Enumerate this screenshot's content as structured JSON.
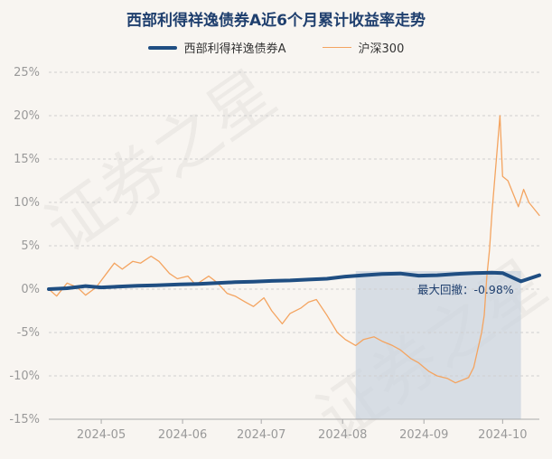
{
  "chart_data": {
    "type": "line",
    "title": "西部利得祥逸债券A近6个月累计收益率走势",
    "ylim": [
      -15,
      25
    ],
    "y_ticks": [
      "25%",
      "20%",
      "15%",
      "10%",
      "5%",
      "0%",
      "-5%",
      "-10%",
      "-15%"
    ],
    "y_tick_values": [
      25,
      20,
      15,
      10,
      5,
      0,
      -5,
      -10,
      -15
    ],
    "x_ticks": [
      "2024-05",
      "2024-06",
      "2024-07",
      "2024-08",
      "2024-09",
      "2024-10"
    ],
    "x_tick_dates": [
      "2024-05-01",
      "2024-06-01",
      "2024-07-01",
      "2024-08-01",
      "2024-09-01",
      "2024-10-01"
    ],
    "x_range": [
      "2024-04-11",
      "2024-10-15"
    ],
    "grid": "horizontal dashed",
    "legend_position": "top-center",
    "series": [
      {
        "name": "西部利得祥逸债券A",
        "color": "#1f4e82",
        "points": [
          [
            "2024-04-11",
            0
          ],
          [
            "2024-04-18",
            0.1
          ],
          [
            "2024-04-25",
            0.35
          ],
          [
            "2024-05-01",
            0.2
          ],
          [
            "2024-05-08",
            0.3
          ],
          [
            "2024-05-15",
            0.4
          ],
          [
            "2024-05-22",
            0.45
          ],
          [
            "2024-05-31",
            0.55
          ],
          [
            "2024-06-07",
            0.6
          ],
          [
            "2024-06-14",
            0.7
          ],
          [
            "2024-06-21",
            0.8
          ],
          [
            "2024-06-28",
            0.85
          ],
          [
            "2024-07-05",
            0.95
          ],
          [
            "2024-07-12",
            1.0
          ],
          [
            "2024-07-19",
            1.1
          ],
          [
            "2024-07-26",
            1.2
          ],
          [
            "2024-08-02",
            1.45
          ],
          [
            "2024-08-09",
            1.6
          ],
          [
            "2024-08-16",
            1.75
          ],
          [
            "2024-08-23",
            1.8
          ],
          [
            "2024-08-30",
            1.55
          ],
          [
            "2024-09-06",
            1.6
          ],
          [
            "2024-09-13",
            1.75
          ],
          [
            "2024-09-20",
            1.85
          ],
          [
            "2024-09-27",
            1.9
          ],
          [
            "2024-10-01",
            1.85
          ],
          [
            "2024-10-08",
            0.9
          ],
          [
            "2024-10-15",
            1.6
          ]
        ]
      },
      {
        "name": "沪深300",
        "color": "#f4a460",
        "points": [
          [
            "2024-04-11",
            0
          ],
          [
            "2024-04-14",
            -0.8
          ],
          [
            "2024-04-18",
            0.7
          ],
          [
            "2024-04-22",
            0.2
          ],
          [
            "2024-04-25",
            -0.7
          ],
          [
            "2024-04-29",
            0.2
          ],
          [
            "2024-05-03",
            1.8
          ],
          [
            "2024-05-06",
            3.0
          ],
          [
            "2024-05-09",
            2.3
          ],
          [
            "2024-05-13",
            3.2
          ],
          [
            "2024-05-16",
            3.0
          ],
          [
            "2024-05-20",
            3.8
          ],
          [
            "2024-05-23",
            3.2
          ],
          [
            "2024-05-27",
            1.8
          ],
          [
            "2024-05-30",
            1.2
          ],
          [
            "2024-06-03",
            1.5
          ],
          [
            "2024-06-06",
            0.5
          ],
          [
            "2024-06-11",
            1.5
          ],
          [
            "2024-06-14",
            0.8
          ],
          [
            "2024-06-18",
            -0.5
          ],
          [
            "2024-06-21",
            -0.8
          ],
          [
            "2024-06-25",
            -1.5
          ],
          [
            "2024-06-28",
            -2.0
          ],
          [
            "2024-07-02",
            -1.0
          ],
          [
            "2024-07-05",
            -2.5
          ],
          [
            "2024-07-09",
            -4.0
          ],
          [
            "2024-07-12",
            -2.8
          ],
          [
            "2024-07-16",
            -2.2
          ],
          [
            "2024-07-19",
            -1.5
          ],
          [
            "2024-07-22",
            -1.2
          ],
          [
            "2024-07-26",
            -3.0
          ],
          [
            "2024-07-30",
            -5.0
          ],
          [
            "2024-08-02",
            -5.8
          ],
          [
            "2024-08-06",
            -6.5
          ],
          [
            "2024-08-09",
            -5.8
          ],
          [
            "2024-08-13",
            -5.5
          ],
          [
            "2024-08-16",
            -6.0
          ],
          [
            "2024-08-20",
            -6.5
          ],
          [
            "2024-08-23",
            -7.0
          ],
          [
            "2024-08-27",
            -8.0
          ],
          [
            "2024-08-30",
            -8.5
          ],
          [
            "2024-09-03",
            -9.5
          ],
          [
            "2024-09-06",
            -10.0
          ],
          [
            "2024-09-10",
            -10.3
          ],
          [
            "2024-09-13",
            -10.8
          ],
          [
            "2024-09-18",
            -10.2
          ],
          [
            "2024-09-20",
            -9.0
          ],
          [
            "2024-09-23",
            -5.0
          ],
          [
            "2024-09-24",
            -3.0
          ],
          [
            "2024-09-25",
            1.5
          ],
          [
            "2024-09-26",
            4.5
          ],
          [
            "2024-09-27",
            9.0
          ],
          [
            "2024-09-30",
            20.0
          ],
          [
            "2024-10-01",
            13.0
          ],
          [
            "2024-10-03",
            12.5
          ],
          [
            "2024-10-07",
            9.5
          ],
          [
            "2024-10-09",
            11.5
          ],
          [
            "2024-10-11",
            10.0
          ],
          [
            "2024-10-15",
            8.5
          ]
        ]
      }
    ],
    "drawdown": {
      "label": "最大回撤：-0.98%",
      "start": "2024-08-06",
      "end": "2024-10-08"
    }
  }
}
